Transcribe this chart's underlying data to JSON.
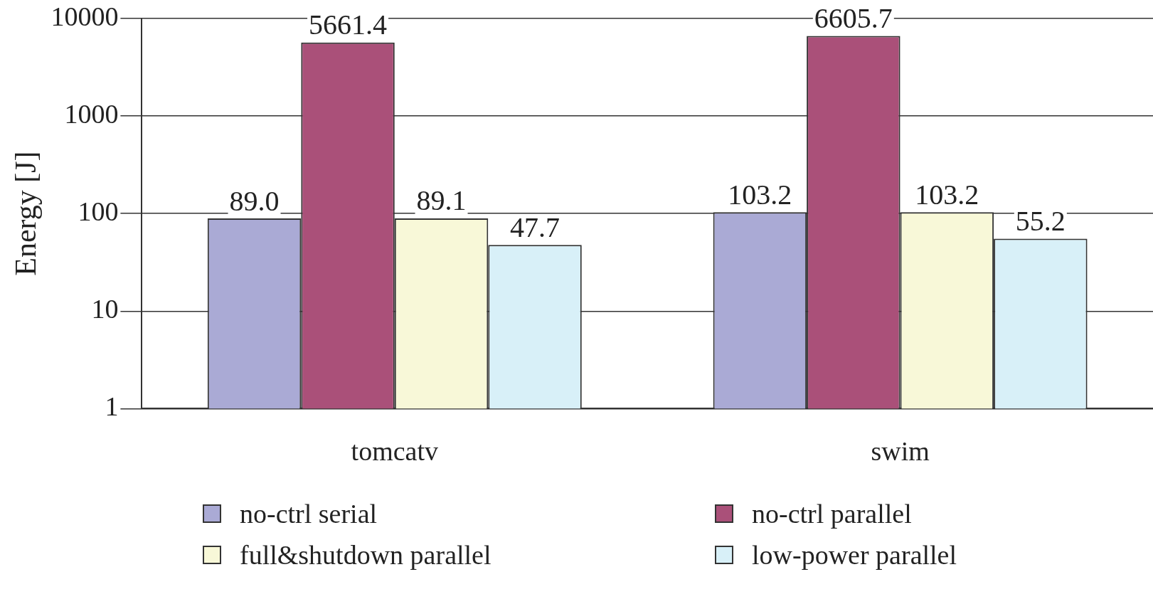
{
  "chart_data": {
    "type": "bar",
    "ylabel": "Energy [J]",
    "categories": [
      "tomcatv",
      "swim"
    ],
    "series": [
      {
        "name": "no-ctrl serial",
        "color": "#aaaad5",
        "values": [
          89.0,
          103.2
        ],
        "value_labels": [
          "89.0",
          "103.2"
        ]
      },
      {
        "name": "no-ctrl parallel",
        "color": "#aa5079",
        "values": [
          5661.4,
          6605.7
        ],
        "value_labels": [
          "5661.4",
          "6605.7"
        ]
      },
      {
        "name": "full&shutdown parallel",
        "color": "#f8f8d8",
        "values": [
          89.1,
          103.2
        ],
        "value_labels": [
          "89.1",
          "103.2"
        ]
      },
      {
        "name": "low-power parallel",
        "color": "#d8f0f8",
        "values": [
          47.7,
          55.2
        ],
        "value_labels": [
          "47.7",
          "55.2"
        ]
      }
    ],
    "log": "y",
    "ylim": [
      1,
      10000
    ],
    "yticks": [
      1,
      10,
      100,
      1000,
      10000
    ],
    "grid": "y",
    "legend": "bottom"
  }
}
